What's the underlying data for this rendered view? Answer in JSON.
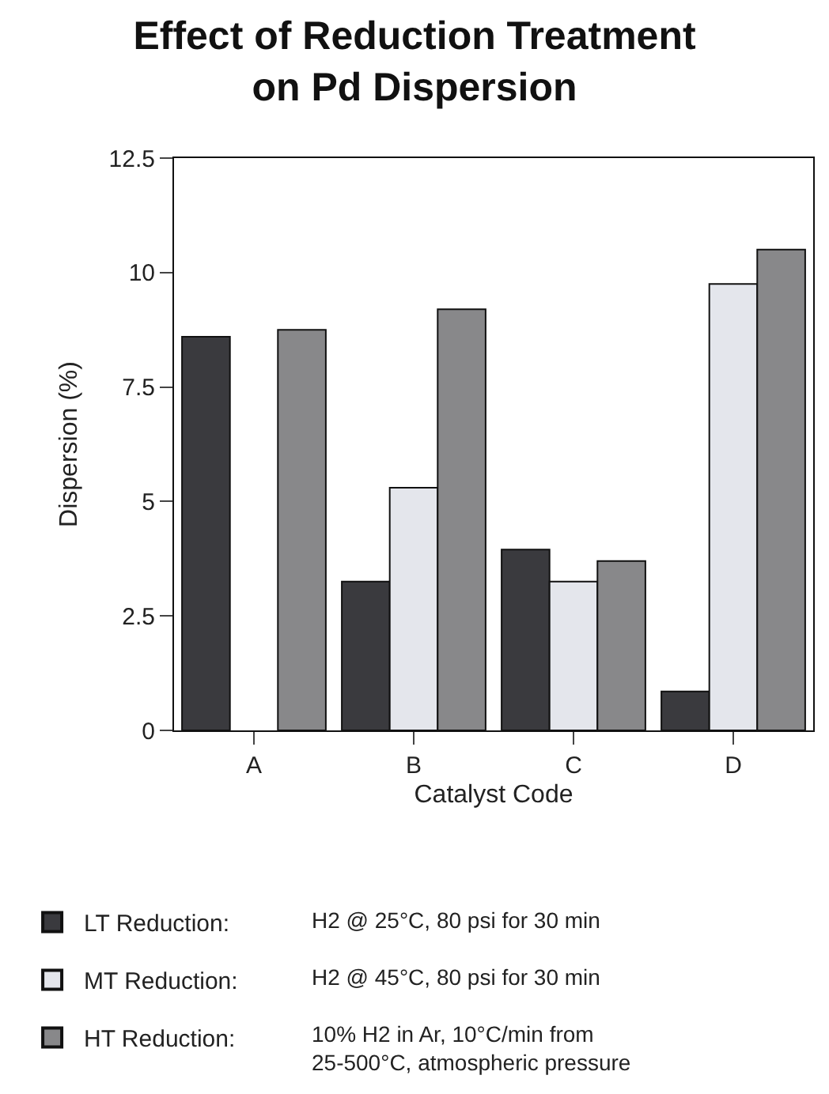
{
  "chart_data": {
    "type": "bar",
    "title": "Effect of Reduction Treatment\non Pd Dispersion",
    "xlabel": "Catalyst Code",
    "ylabel": "Dispersion (%)",
    "categories": [
      "A",
      "B",
      "C",
      "D"
    ],
    "series": [
      {
        "name": "LT Reduction:",
        "color": "#3a3a3e",
        "values": [
          8.6,
          3.25,
          3.95,
          0.85
        ]
      },
      {
        "name": "MT Reduction:",
        "color": "#e4e6ec",
        "values": [
          null,
          5.3,
          3.25,
          9.75
        ]
      },
      {
        "name": "HT Reduction:",
        "color": "#88888a",
        "values": [
          8.75,
          9.2,
          3.7,
          10.5
        ]
      }
    ],
    "ylim": [
      0,
      12.5
    ],
    "yticks": [
      0,
      2.5,
      5,
      7.5,
      10,
      12.5
    ],
    "grid": false,
    "legend": "bottom",
    "annotations": [
      "H2 @ 25°C, 80 psi for 30 min",
      "H2 @ 45°C, 80 psi for 30 min",
      "10% H2 in Ar, 10°C/min from\n25-500°C, atmospheric pressure"
    ]
  }
}
